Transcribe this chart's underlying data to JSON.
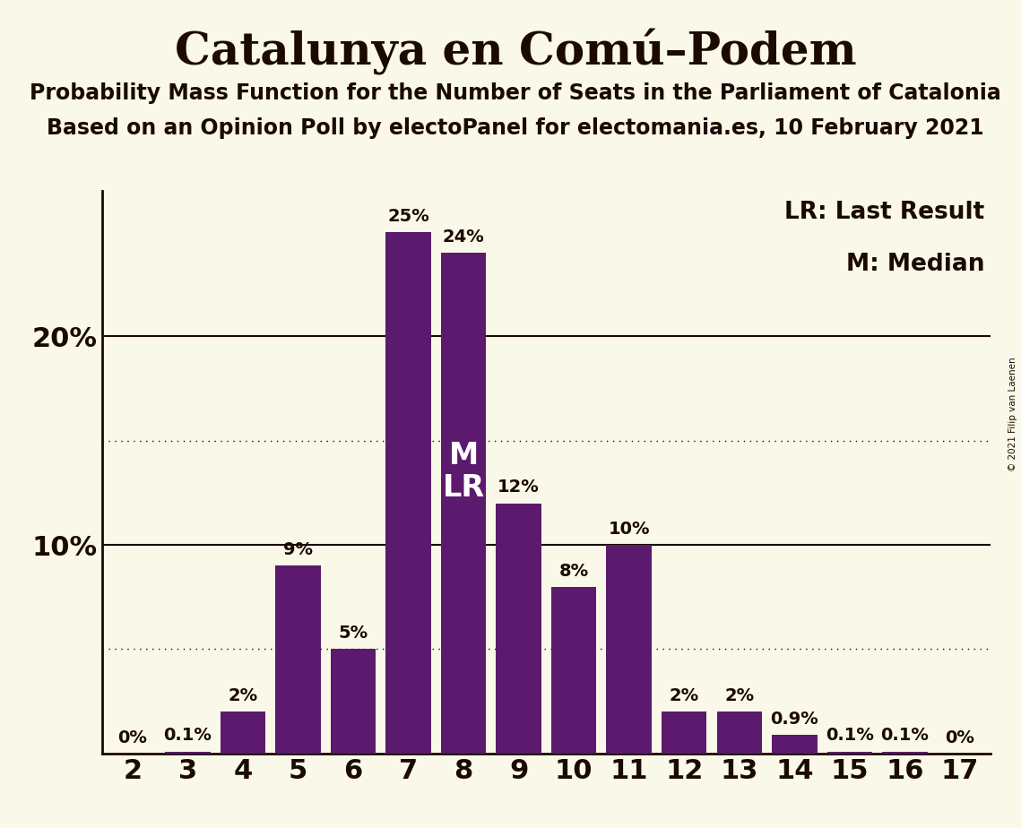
{
  "title": "Catalunya en Comú–Podem",
  "subtitle1": "Probability Mass Function for the Number of Seats in the Parliament of Catalonia",
  "subtitle2": "Based on an Opinion Poll by electoPanel for electomania.es, 10 February 2021",
  "copyright": "© 2021 Filip van Laenen",
  "seats": [
    2,
    3,
    4,
    5,
    6,
    7,
    8,
    9,
    10,
    11,
    12,
    13,
    14,
    15,
    16,
    17
  ],
  "probabilities": [
    0.0,
    0.1,
    2.0,
    9.0,
    5.0,
    25.0,
    24.0,
    12.0,
    8.0,
    10.0,
    2.0,
    2.0,
    0.9,
    0.1,
    0.1,
    0.0
  ],
  "bar_color": "#5b1a6e",
  "background_color": "#faf8e8",
  "text_color": "#1a0a00",
  "median_seat": 8,
  "last_result_seat": 8,
  "legend_lr": "LR: Last Result",
  "legend_m": "M: Median",
  "ylim": [
    0,
    27
  ],
  "solid_yticks": [
    10,
    20
  ],
  "dotted_yticks": [
    5,
    15
  ],
  "bar_label_fontsize": 14,
  "title_fontsize": 36,
  "subtitle_fontsize": 17,
  "tick_fontsize": 22,
  "legend_fontsize": 19,
  "ml_fontsize": 24
}
